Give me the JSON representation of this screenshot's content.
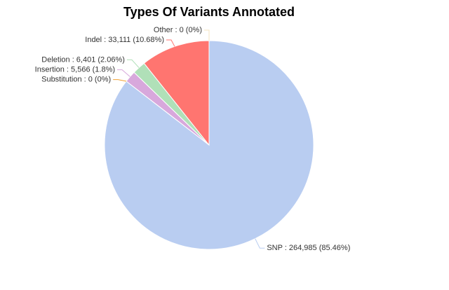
{
  "chart_data": {
    "type": "pie",
    "title": "Types Of Variants Annotated",
    "categories": [
      "SNP",
      "Substitution",
      "Insertion",
      "Deletion",
      "Indel",
      "Other"
    ],
    "values": [
      264985,
      0,
      5566,
      6401,
      33111,
      0
    ],
    "value_labels": [
      "SNP : 264,985 (85.46%)",
      "Substitution : 0 (0%)",
      "Insertion : 5,566 (1.8%)",
      "Deletion : 6,401 (2.06%)",
      "Indel : 33,111 (10.68%)",
      "Other : 0 (0%)"
    ],
    "colors": [
      "#b9cdf1",
      "#f0a030",
      "#d8a8dc",
      "#b0e0b8",
      "#ff7570",
      "#f5e6c0"
    ]
  }
}
